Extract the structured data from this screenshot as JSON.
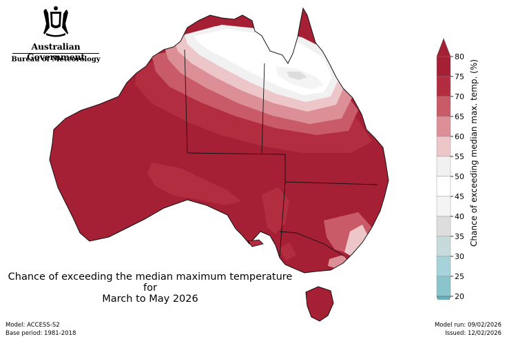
{
  "header": {
    "government": "Australian Government",
    "bureau": "Bureau of Meteorology"
  },
  "map": {
    "title_line1": "Chance of exceeding the median maximum temperature for",
    "title_line2": "March to May 2026",
    "region": "Australia",
    "colors": {
      "c80": "#a51f35",
      "c75": "#b32d40",
      "c70": "#c85b67",
      "c65": "#dc8f96",
      "c60": "#edc6c9",
      "c55": "#f1f1f1",
      "c50": "#ffffff",
      "c45": "#f4f4f4",
      "c40": "#dddddd",
      "c35": "#c7dadc",
      "c30": "#a6d3d9",
      "c25": "#8ac4cd",
      "c20": "#6aaebc",
      "border": "#111111"
    }
  },
  "colorbar": {
    "label": "Chance of exceeding median max. temp. (%)",
    "ticks": [
      "80",
      "75",
      "70",
      "65",
      "60",
      "55",
      "50",
      "45",
      "40",
      "35",
      "30",
      "25",
      "20"
    ]
  },
  "footer": {
    "model": "Model: ACCESS-S2",
    "base_period": "Base period: 1981-2018",
    "model_run": "Model run: 09/02/2026",
    "issued": "Issued: 12/02/2026"
  }
}
